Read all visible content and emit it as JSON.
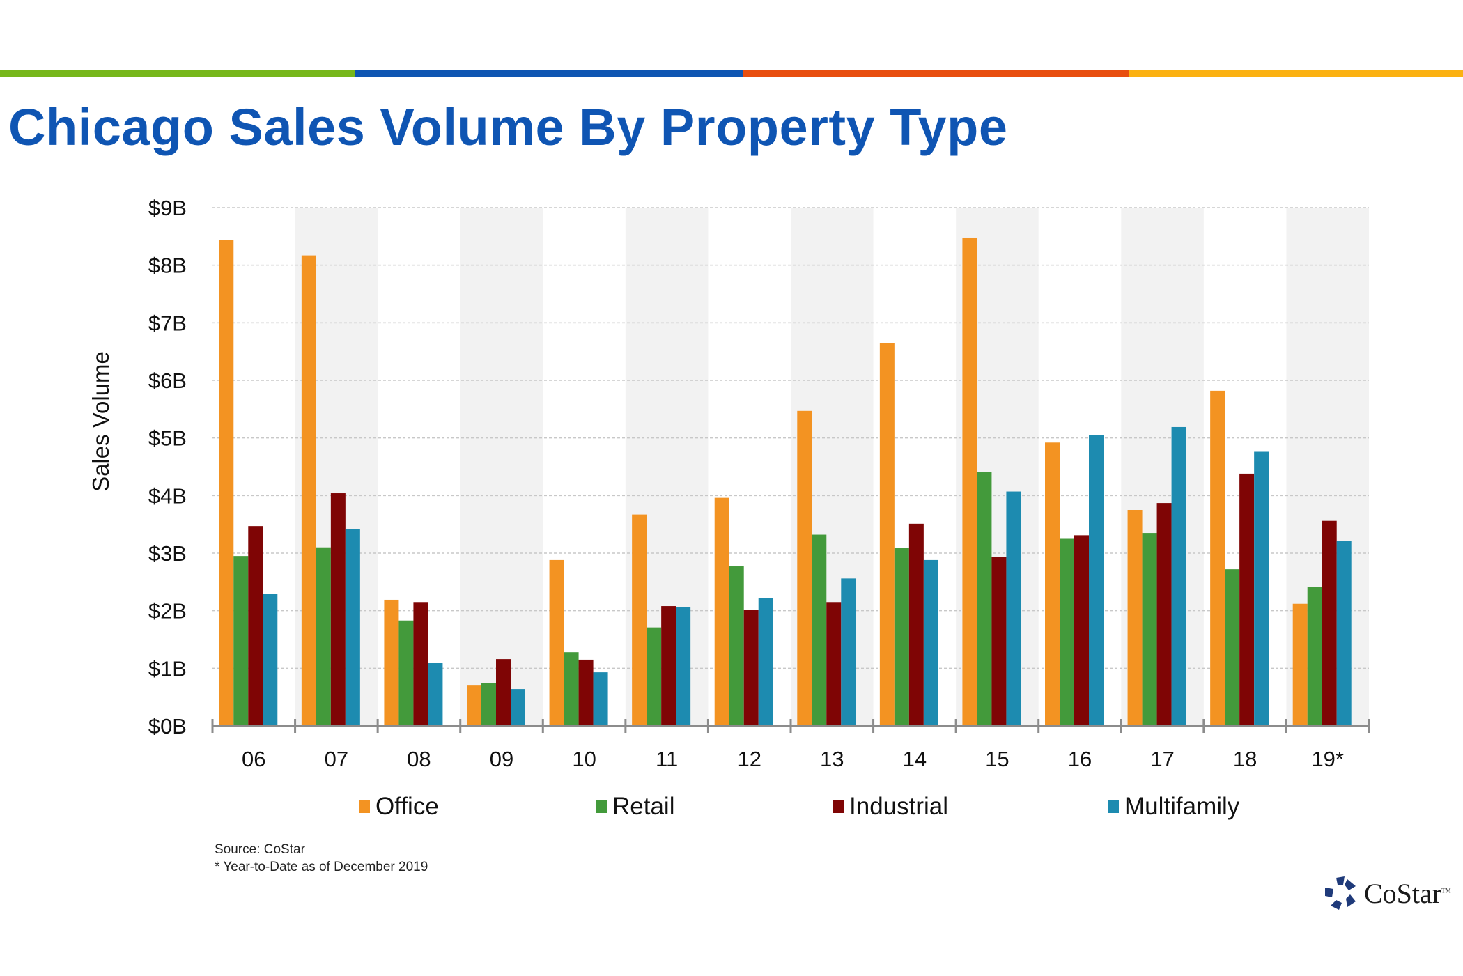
{
  "header": {
    "title": "Chicago Sales Volume By Property Type",
    "stripe_colors": [
      "#77b71b",
      "#0e55b2",
      "#e84e0f",
      "#fbb111"
    ],
    "title_color": "#0f55b3"
  },
  "chart_data": {
    "type": "bar",
    "title": "Chicago Sales Volume By Property Type",
    "xlabel": "",
    "ylabel": "Sales Volume",
    "ylim": [
      0,
      9
    ],
    "y_ticks": [
      0,
      1,
      2,
      3,
      4,
      5,
      6,
      7,
      8,
      9
    ],
    "y_tick_labels": [
      "$0B",
      "$1B",
      "$2B",
      "$3B",
      "$4B",
      "$5B",
      "$6B",
      "$7B",
      "$8B",
      "$9B"
    ],
    "units": "billions USD",
    "grid": true,
    "legend_position": "bottom",
    "categories": [
      "06",
      "07",
      "08",
      "09",
      "10",
      "11",
      "12",
      "13",
      "14",
      "15",
      "16",
      "17",
      "18",
      "19*"
    ],
    "series": [
      {
        "name": "Office",
        "color": "#f39322",
        "values": [
          8.44,
          8.17,
          2.19,
          0.7,
          2.88,
          3.67,
          3.96,
          5.47,
          6.65,
          8.48,
          4.92,
          3.75,
          5.82,
          2.12
        ]
      },
      {
        "name": "Retail",
        "color": "#439a3b",
        "values": [
          2.95,
          3.1,
          1.83,
          0.75,
          1.28,
          1.71,
          2.77,
          3.32,
          3.09,
          4.41,
          3.26,
          3.35,
          2.72,
          2.41
        ]
      },
      {
        "name": "Industrial",
        "color": "#7f0505",
        "values": [
          3.47,
          4.04,
          2.15,
          1.16,
          1.15,
          2.08,
          2.02,
          2.15,
          3.51,
          2.93,
          3.31,
          3.87,
          4.38,
          3.56
        ]
      },
      {
        "name": "Multifamily",
        "color": "#1d8bb0",
        "values": [
          2.29,
          3.42,
          1.1,
          0.64,
          0.93,
          2.06,
          2.22,
          2.56,
          2.88,
          4.07,
          5.05,
          5.19,
          4.76,
          3.21
        ]
      }
    ]
  },
  "footer": {
    "source": "Source: CoStar",
    "note": "* Year-to-Date as of December 2019",
    "logo_text": "CoStar",
    "logo_tm": "TM"
  }
}
